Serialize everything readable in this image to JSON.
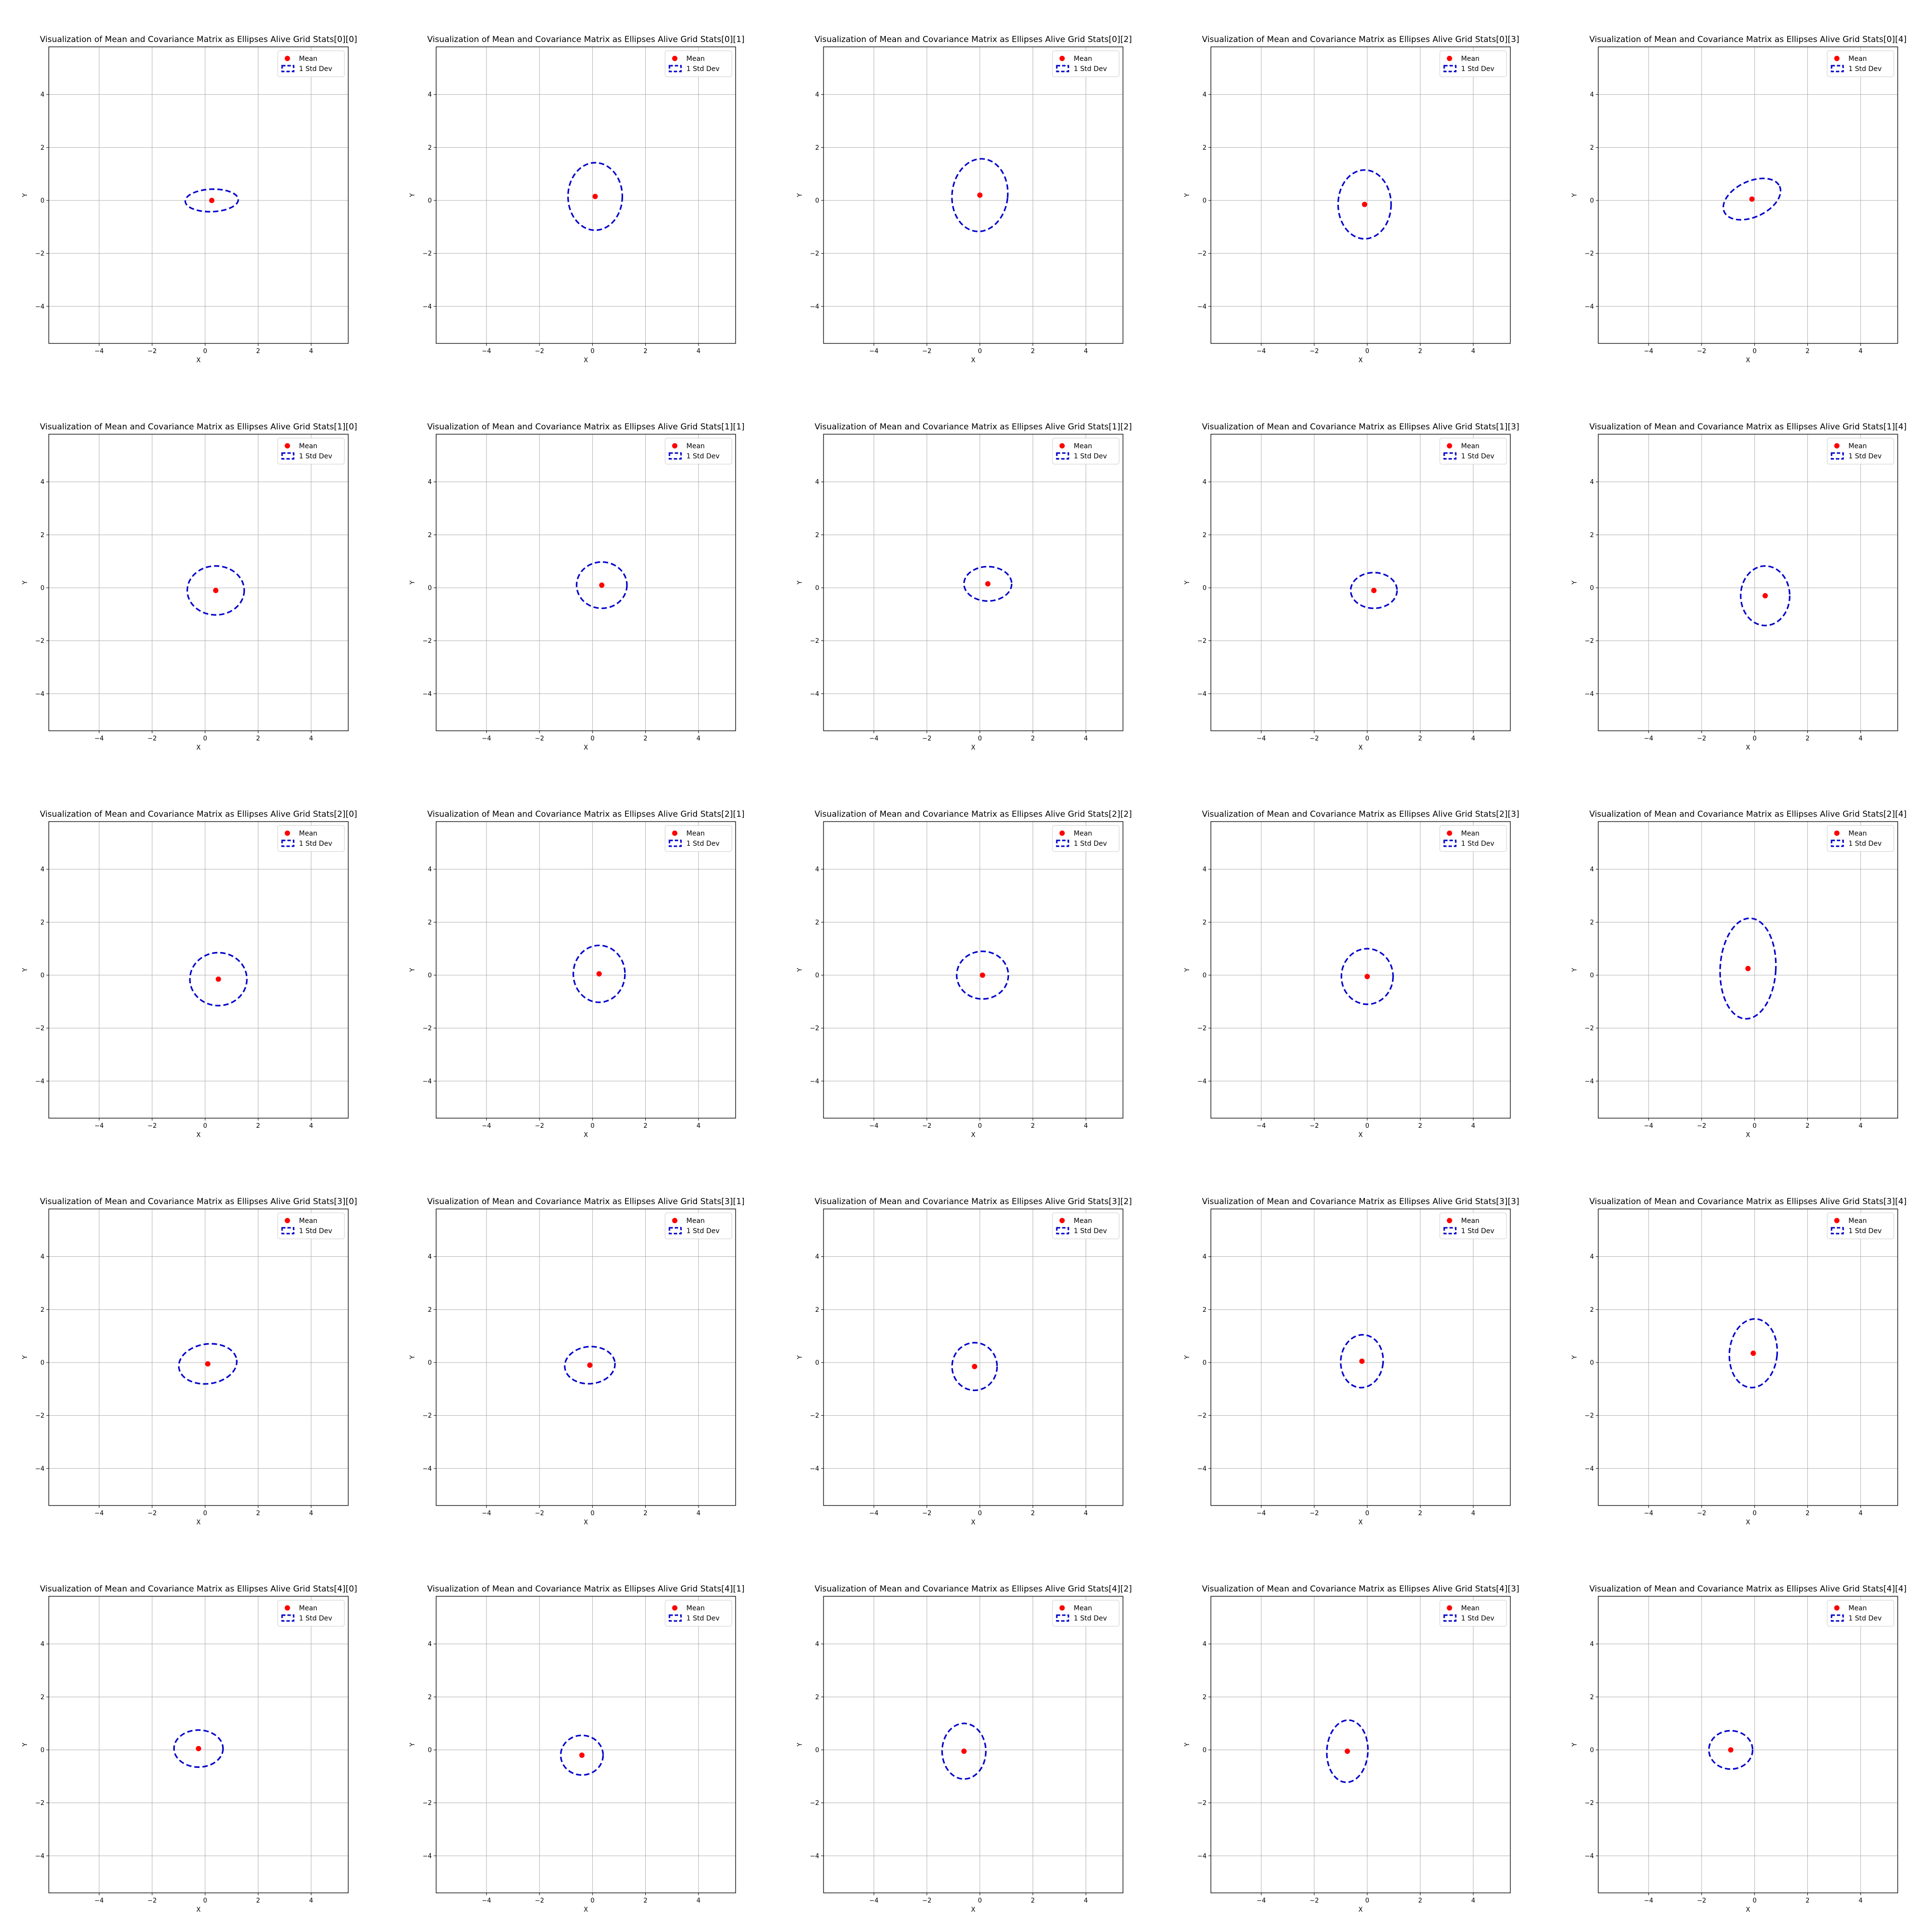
{
  "figure": {
    "xlabel": "X",
    "ylabel": "Y",
    "xlim": [
      -5.9,
      5.4
    ],
    "ylim": [
      -5.4,
      5.8
    ],
    "xticks": [
      -4,
      -2,
      0,
      2,
      4
    ],
    "yticks": [
      -4,
      -2,
      0,
      2,
      4
    ],
    "grid": true,
    "legend": {
      "placement": "top-right",
      "mean_label": "Mean",
      "ellipse_label": "1 Std Dev"
    },
    "colors": {
      "mean": "#ff0000",
      "ellipse": "#0000cc",
      "grid": "#b0b0b0",
      "axes": "#000000"
    }
  },
  "chart_data": [
    {
      "type": "scatter",
      "title": "Visualization of Mean and Covariance Matrix as Ellipses Alive Grid Stats[0][0]",
      "mean": [
        0.25,
        0.0
      ],
      "ellipse": {
        "width": 2.0,
        "height": 0.85,
        "angle": 2
      }
    },
    {
      "type": "scatter",
      "title": "Visualization of Mean and Covariance Matrix as Ellipses Alive Grid Stats[0][1]",
      "mean": [
        0.1,
        0.15
      ],
      "ellipse": {
        "width": 2.05,
        "height": 2.55,
        "angle": 0
      }
    },
    {
      "type": "scatter",
      "title": "Visualization of Mean and Covariance Matrix as Ellipses Alive Grid Stats[0][2]",
      "mean": [
        0.0,
        0.2
      ],
      "ellipse": {
        "width": 2.1,
        "height": 2.75,
        "angle": -6
      }
    },
    {
      "type": "scatter",
      "title": "Visualization of Mean and Covariance Matrix as Ellipses Alive Grid Stats[0][3]",
      "mean": [
        -0.1,
        -0.15
      ],
      "ellipse": {
        "width": 2.0,
        "height": 2.6,
        "angle": 0
      }
    },
    {
      "type": "scatter",
      "title": "Visualization of Mean and Covariance Matrix as Ellipses Alive Grid Stats[0][4]",
      "mean": [
        -0.1,
        0.05
      ],
      "ellipse": {
        "width": 2.3,
        "height": 1.35,
        "angle": 25
      }
    },
    {
      "type": "scatter",
      "title": "Visualization of Mean and Covariance Matrix as Ellipses Alive Grid Stats[1][0]",
      "mean": [
        0.4,
        -0.1
      ],
      "ellipse": {
        "width": 2.15,
        "height": 1.85,
        "angle": 0
      }
    },
    {
      "type": "scatter",
      "title": "Visualization of Mean and Covariance Matrix as Ellipses Alive Grid Stats[1][1]",
      "mean": [
        0.35,
        0.1
      ],
      "ellipse": {
        "width": 1.9,
        "height": 1.75,
        "angle": 0
      }
    },
    {
      "type": "scatter",
      "title": "Visualization of Mean and Covariance Matrix as Ellipses Alive Grid Stats[1][2]",
      "mean": [
        0.3,
        0.15
      ],
      "ellipse": {
        "width": 1.8,
        "height": 1.3,
        "angle": 0
      }
    },
    {
      "type": "scatter",
      "title": "Visualization of Mean and Covariance Matrix as Ellipses Alive Grid Stats[1][3]",
      "mean": [
        0.25,
        -0.1
      ],
      "ellipse": {
        "width": 1.75,
        "height": 1.35,
        "angle": 0
      }
    },
    {
      "type": "scatter",
      "title": "Visualization of Mean and Covariance Matrix as Ellipses Alive Grid Stats[1][4]",
      "mean": [
        0.4,
        -0.3
      ],
      "ellipse": {
        "width": 1.85,
        "height": 2.25,
        "angle": 0
      }
    },
    {
      "type": "scatter",
      "title": "Visualization of Mean and Covariance Matrix as Ellipses Alive Grid Stats[2][0]",
      "mean": [
        0.5,
        -0.15
      ],
      "ellipse": {
        "width": 2.15,
        "height": 2.0,
        "angle": 0
      }
    },
    {
      "type": "scatter",
      "title": "Visualization of Mean and Covariance Matrix as Ellipses Alive Grid Stats[2][1]",
      "mean": [
        0.25,
        0.05
      ],
      "ellipse": {
        "width": 1.95,
        "height": 2.15,
        "angle": 0
      }
    },
    {
      "type": "scatter",
      "title": "Visualization of Mean and Covariance Matrix as Ellipses Alive Grid Stats[2][2]",
      "mean": [
        0.1,
        0.0
      ],
      "ellipse": {
        "width": 1.95,
        "height": 1.8,
        "angle": 0
      }
    },
    {
      "type": "scatter",
      "title": "Visualization of Mean and Covariance Matrix as Ellipses Alive Grid Stats[2][3]",
      "mean": [
        0.0,
        -0.05
      ],
      "ellipse": {
        "width": 1.95,
        "height": 2.1,
        "angle": 0
      }
    },
    {
      "type": "scatter",
      "title": "Visualization of Mean and Covariance Matrix as Ellipses Alive Grid Stats[2][4]",
      "mean": [
        -0.25,
        0.25
      ],
      "ellipse": {
        "width": 2.1,
        "height": 3.8,
        "angle": -3
      }
    },
    {
      "type": "scatter",
      "title": "Visualization of Mean and Covariance Matrix as Ellipses Alive Grid Stats[3][0]",
      "mean": [
        0.1,
        -0.05
      ],
      "ellipse": {
        "width": 2.2,
        "height": 1.5,
        "angle": 8
      }
    },
    {
      "type": "scatter",
      "title": "Visualization of Mean and Covariance Matrix as Ellipses Alive Grid Stats[3][1]",
      "mean": [
        -0.1,
        -0.1
      ],
      "ellipse": {
        "width": 1.9,
        "height": 1.4,
        "angle": 5
      }
    },
    {
      "type": "scatter",
      "title": "Visualization of Mean and Covariance Matrix as Ellipses Alive Grid Stats[3][2]",
      "mean": [
        -0.2,
        -0.15
      ],
      "ellipse": {
        "width": 1.7,
        "height": 1.8,
        "angle": 0
      }
    },
    {
      "type": "scatter",
      "title": "Visualization of Mean and Covariance Matrix as Ellipses Alive Grid Stats[3][3]",
      "mean": [
        -0.2,
        0.05
      ],
      "ellipse": {
        "width": 1.6,
        "height": 2.0,
        "angle": -5
      }
    },
    {
      "type": "scatter",
      "title": "Visualization of Mean and Covariance Matrix as Ellipses Alive Grid Stats[3][4]",
      "mean": [
        -0.05,
        0.35
      ],
      "ellipse": {
        "width": 1.8,
        "height": 2.6,
        "angle": -5
      }
    },
    {
      "type": "scatter",
      "title": "Visualization of Mean and Covariance Matrix as Ellipses Alive Grid Stats[4][0]",
      "mean": [
        -0.25,
        0.05
      ],
      "ellipse": {
        "width": 1.85,
        "height": 1.4,
        "angle": 0
      }
    },
    {
      "type": "scatter",
      "title": "Visualization of Mean and Covariance Matrix as Ellipses Alive Grid Stats[4][1]",
      "mean": [
        -0.4,
        -0.2
      ],
      "ellipse": {
        "width": 1.6,
        "height": 1.5,
        "angle": 0
      }
    },
    {
      "type": "scatter",
      "title": "Visualization of Mean and Covariance Matrix as Ellipses Alive Grid Stats[4][2]",
      "mean": [
        -0.6,
        -0.05
      ],
      "ellipse": {
        "width": 1.65,
        "height": 2.1,
        "angle": 0
      }
    },
    {
      "type": "scatter",
      "title": "Visualization of Mean and Covariance Matrix as Ellipses Alive Grid Stats[4][3]",
      "mean": [
        -0.75,
        -0.05
      ],
      "ellipse": {
        "width": 1.55,
        "height": 2.35,
        "angle": -3
      }
    },
    {
      "type": "scatter",
      "title": "Visualization of Mean and Covariance Matrix as Ellipses Alive Grid Stats[4][4]",
      "mean": [
        -0.9,
        0.0
      ],
      "ellipse": {
        "width": 1.65,
        "height": 1.45,
        "angle": 0
      }
    }
  ]
}
